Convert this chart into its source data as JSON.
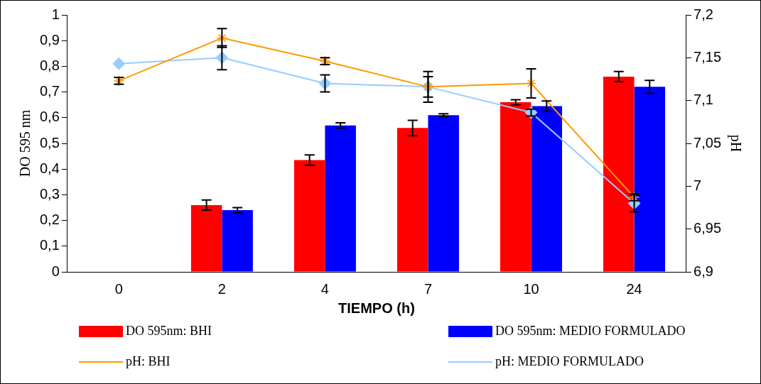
{
  "chart_data": {
    "type": "bar",
    "xlabel": "TIEMPO (h)",
    "ylabel": "DO 595 nm",
    "y2label": "pH",
    "categories": [
      "0",
      "2",
      "4",
      "7",
      "10",
      "24"
    ],
    "series": [
      {
        "name": "DO 595nm: BHI",
        "color": "#ff0000",
        "values": [
          0,
          0.26,
          0.435,
          0.56,
          0.66,
          0.76
        ],
        "errors": [
          null,
          0.02,
          0.02,
          0.03,
          0.01,
          0.02
        ]
      },
      {
        "name": "DO 595nm: MEDIO FORMULADO",
        "color": "#0000ff",
        "values": [
          0,
          0.24,
          0.57,
          0.61,
          0.645,
          0.72
        ],
        "errors": [
          null,
          0.01,
          0.01,
          0.005,
          0.02,
          0.025
        ]
      },
      {
        "name": "pH: BHI",
        "type": "line",
        "axis": "y2",
        "marker": "cross",
        "color": "#ff9900",
        "values": [
          7.123,
          7.173,
          7.146,
          7.116,
          7.12,
          6.987
        ],
        "errors": [
          0.004,
          0.011,
          0.004,
          0.018,
          0.017,
          0.004
        ]
      },
      {
        "name": "pH: MEDIO FORMULADO",
        "type": "line",
        "axis": "y2",
        "marker": "diamond",
        "color": "#99ccff",
        "values": [
          7.143,
          7.15,
          7.12,
          7.116,
          7.086,
          6.98
        ],
        "errors": [
          null,
          0.014,
          0.01,
          0.012,
          0.004,
          0.01
        ]
      }
    ],
    "ylim": [
      0,
      1
    ],
    "yticks": [
      {
        "value": 0,
        "label": "0"
      },
      {
        "value": 0.1,
        "label": "0,1"
      },
      {
        "value": 0.2,
        "label": "0,2"
      },
      {
        "value": 0.3,
        "label": "0,3"
      },
      {
        "value": 0.4,
        "label": "0,4"
      },
      {
        "value": 0.5,
        "label": "0,5"
      },
      {
        "value": 0.6,
        "label": "0,6"
      },
      {
        "value": 0.7,
        "label": "0,7"
      },
      {
        "value": 0.8,
        "label": "0,8"
      },
      {
        "value": 0.9,
        "label": "0,9"
      },
      {
        "value": 1,
        "label": "1"
      }
    ],
    "y2lim": [
      6.9,
      7.2
    ],
    "y2ticks": [
      {
        "value": 6.9,
        "label": "6,9"
      },
      {
        "value": 6.95,
        "label": "6,95"
      },
      {
        "value": 7,
        "label": "7"
      },
      {
        "value": 7.05,
        "label": "7,05"
      },
      {
        "value": 7.1,
        "label": "7,1"
      },
      {
        "value": 7.15,
        "label": "7,15"
      },
      {
        "value": 7.2,
        "label": "7,2"
      }
    ],
    "grid": false,
    "legend": "bottom"
  }
}
